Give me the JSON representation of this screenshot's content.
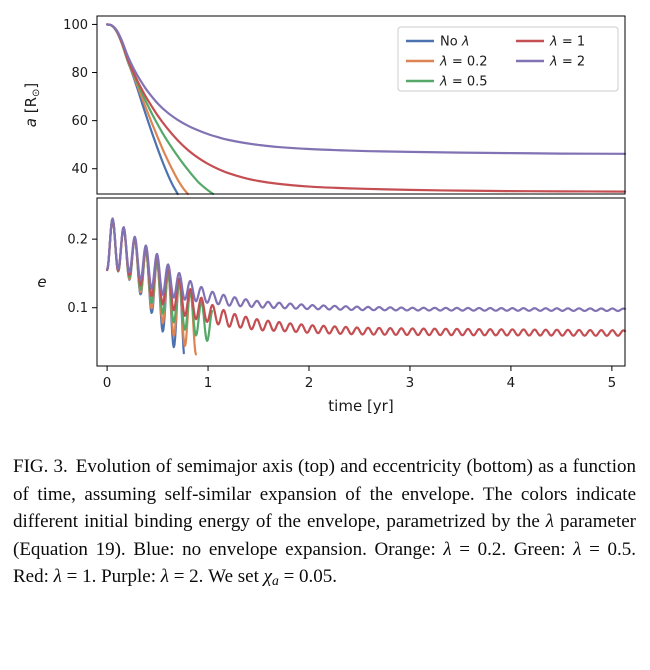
{
  "page": {
    "background": "#ffffff"
  },
  "caption": {
    "segments": [
      {
        "t": "FIG. 3.",
        "s": "figlabel"
      },
      {
        "t": "Evolution of semimajor axis (top) and eccentricity (bottom) as a function of time, assuming self-similar expansion of the envelope. The colors indicate different initial binding energy of the envelope, parametrized by the ",
        "s": "normal"
      },
      {
        "t": "λ",
        "s": "italic"
      },
      {
        "t": " parameter (Equation 19). Blue: no envelope expansion. Orange: ",
        "s": "normal"
      },
      {
        "t": "λ",
        "s": "italic"
      },
      {
        "t": " = 0.2. Green: ",
        "s": "normal"
      },
      {
        "t": "λ",
        "s": "italic"
      },
      {
        "t": " = 0.5. Red: ",
        "s": "normal"
      },
      {
        "t": "λ",
        "s": "italic"
      },
      {
        "t": " = 1. Purple: ",
        "s": "normal"
      },
      {
        "t": "λ",
        "s": "italic"
      },
      {
        "t": " = 2. We set ",
        "s": "normal"
      },
      {
        "t": "χ",
        "s": "italic"
      },
      {
        "t": "a",
        "s": "sub"
      },
      {
        "t": " = 0.05.",
        "s": "normal"
      }
    ]
  },
  "chart_data": [
    {
      "type": "line",
      "title": "",
      "ylabel": "a [R⊙]",
      "ylabel_parts": [
        {
          "t": "a",
          "italic": true
        },
        {
          "t": " [R"
        },
        {
          "t": "⊙",
          "sub": true
        },
        {
          "t": "]"
        }
      ],
      "ylim": [
        29.5,
        103.5
      ],
      "yticks": [
        40,
        60,
        80,
        100
      ],
      "xlim": [
        -0.1,
        5.13
      ],
      "grid": false,
      "legend": {
        "position": "upper right",
        "columns": [
          [
            "No λ",
            "λ = 0.2",
            "λ = 0.5"
          ],
          [
            "λ = 1",
            "λ = 2"
          ]
        ]
      },
      "series": [
        {
          "name": "No λ",
          "color": "#4C72B0",
          "points": [
            [
              0,
              100
            ],
            [
              0.05,
              99.4
            ],
            [
              0.1,
              96.6
            ],
            [
              0.15,
              91.6
            ],
            [
              0.2,
              85.2
            ],
            [
              0.25,
              79.6
            ],
            [
              0.3,
              73.4
            ],
            [
              0.35,
              66.8
            ],
            [
              0.4,
              60.4
            ],
            [
              0.45,
              54.3
            ],
            [
              0.5,
              48.4
            ],
            [
              0.55,
              42.8
            ],
            [
              0.6,
              37.7
            ],
            [
              0.65,
              33.2
            ],
            [
              0.7,
              29.5
            ]
          ]
        },
        {
          "name": "λ = 0.2",
          "color": "#DD8452",
          "points": [
            [
              0,
              100
            ],
            [
              0.05,
              99.4
            ],
            [
              0.1,
              96.7
            ],
            [
              0.15,
              91.7
            ],
            [
              0.2,
              85.4
            ],
            [
              0.25,
              80.0
            ],
            [
              0.3,
              74.6
            ],
            [
              0.35,
              69.0
            ],
            [
              0.4,
              63.6
            ],
            [
              0.45,
              58.3
            ],
            [
              0.5,
              53.2
            ],
            [
              0.55,
              48.2
            ],
            [
              0.6,
              43.6
            ],
            [
              0.65,
              39.3
            ],
            [
              0.7,
              35.4
            ],
            [
              0.75,
              32.1
            ],
            [
              0.8,
              29.5
            ]
          ]
        },
        {
          "name": "λ = 0.5",
          "color": "#55A868",
          "points": [
            [
              0,
              100
            ],
            [
              0.05,
              99.4
            ],
            [
              0.1,
              96.8
            ],
            [
              0.15,
              91.9
            ],
            [
              0.2,
              85.6
            ],
            [
              0.25,
              80.5
            ],
            [
              0.3,
              75.6
            ],
            [
              0.35,
              71.0
            ],
            [
              0.4,
              66.6
            ],
            [
              0.45,
              62.4
            ],
            [
              0.5,
              58.5
            ],
            [
              0.55,
              54.8
            ],
            [
              0.6,
              51.4
            ],
            [
              0.65,
              48.2
            ],
            [
              0.7,
              45.2
            ],
            [
              0.75,
              42.3
            ],
            [
              0.8,
              39.6
            ],
            [
              0.85,
              37.0
            ],
            [
              0.9,
              34.6
            ],
            [
              0.95,
              32.7
            ],
            [
              1.0,
              31.0
            ],
            [
              1.05,
              29.5
            ]
          ]
        },
        {
          "name": "λ = 1",
          "color": "#C44E52",
          "points": [
            [
              0,
              100
            ],
            [
              0.05,
              99.5
            ],
            [
              0.1,
              96.9
            ],
            [
              0.15,
              92.1
            ],
            [
              0.2,
              86.0
            ],
            [
              0.25,
              81.0
            ],
            [
              0.3,
              76.6
            ],
            [
              0.35,
              72.5
            ],
            [
              0.4,
              68.8
            ],
            [
              0.5,
              62.2
            ],
            [
              0.6,
              56.6
            ],
            [
              0.7,
              51.8
            ],
            [
              0.8,
              47.8
            ],
            [
              0.9,
              44.6
            ],
            [
              1.0,
              42.0
            ],
            [
              1.1,
              39.9
            ],
            [
              1.2,
              38.2
            ],
            [
              1.35,
              36.3
            ],
            [
              1.5,
              34.9
            ],
            [
              1.7,
              33.7
            ],
            [
              2.0,
              32.6
            ],
            [
              2.3,
              32.0
            ],
            [
              2.6,
              31.6
            ],
            [
              3.0,
              31.2
            ],
            [
              3.5,
              30.9
            ],
            [
              4.0,
              30.7
            ],
            [
              4.5,
              30.6
            ],
            [
              5.13,
              30.5
            ]
          ]
        },
        {
          "name": "λ = 2",
          "color": "#8172B3",
          "points": [
            [
              0,
              100
            ],
            [
              0.05,
              99.5
            ],
            [
              0.1,
              97.3
            ],
            [
              0.15,
              92.9
            ],
            [
              0.2,
              87.3
            ],
            [
              0.25,
              82.7
            ],
            [
              0.3,
              78.8
            ],
            [
              0.35,
              75.4
            ],
            [
              0.4,
              72.3
            ],
            [
              0.5,
              67.2
            ],
            [
              0.6,
              63.3
            ],
            [
              0.7,
              60.3
            ],
            [
              0.8,
              57.9
            ],
            [
              0.9,
              56.0
            ],
            [
              1.0,
              54.4
            ],
            [
              1.1,
              53.1
            ],
            [
              1.2,
              52.0
            ],
            [
              1.35,
              50.8
            ],
            [
              1.5,
              49.9
            ],
            [
              1.7,
              49.0
            ],
            [
              2.0,
              48.2
            ],
            [
              2.3,
              47.7
            ],
            [
              2.6,
              47.3
            ],
            [
              3.0,
              47.0
            ],
            [
              3.5,
              46.7
            ],
            [
              4.0,
              46.5
            ],
            [
              4.5,
              46.3
            ],
            [
              5.13,
              46.2
            ]
          ]
        }
      ]
    },
    {
      "type": "line",
      "title": "",
      "ylabel": "e",
      "ylabel_parts": [
        {
          "t": "e",
          "italic": true
        }
      ],
      "ylim": [
        0.015,
        0.26
      ],
      "yticks": [
        0.1,
        0.2
      ],
      "xlim": [
        -0.1,
        5.13
      ],
      "xticks": [
        0,
        1,
        2,
        3,
        4,
        5
      ],
      "xlabel": "time [yr]",
      "grid": false,
      "series": [
        {
          "name": "No λ",
          "color": "#4C72B0",
          "oscillation": {
            "period": 0.11,
            "phase_deg": 180,
            "tmax": 0.76,
            "trend": [
              [
                0,
                0.195
              ],
              [
                0.15,
                0.185
              ],
              [
                0.3,
                0.162
              ],
              [
                0.45,
                0.132
              ],
              [
                0.6,
                0.103
              ],
              [
                0.76,
                0.08
              ]
            ],
            "amplitude": [
              [
                0,
                0.04
              ],
              [
                0.15,
                0.032
              ],
              [
                0.3,
                0.035
              ],
              [
                0.45,
                0.042
              ],
              [
                0.6,
                0.05
              ],
              [
                0.76,
                0.055
              ]
            ]
          }
        },
        {
          "name": "λ = 0.2",
          "color": "#DD8452",
          "oscillation": {
            "period": 0.11,
            "phase_deg": 180,
            "tmax": 0.88,
            "trend": [
              [
                0,
                0.195
              ],
              [
                0.15,
                0.185
              ],
              [
                0.3,
                0.163
              ],
              [
                0.45,
                0.135
              ],
              [
                0.6,
                0.11
              ],
              [
                0.75,
                0.09
              ],
              [
                0.88,
                0.077
              ]
            ],
            "amplitude": [
              [
                0,
                0.04
              ],
              [
                0.15,
                0.032
              ],
              [
                0.3,
                0.034
              ],
              [
                0.45,
                0.038
              ],
              [
                0.6,
                0.042
              ],
              [
                0.88,
                0.045
              ]
            ]
          }
        },
        {
          "name": "λ = 0.5",
          "color": "#55A868",
          "oscillation": {
            "period": 0.11,
            "phase_deg": 180,
            "tmax": 1.04,
            "trend": [
              [
                0,
                0.195
              ],
              [
                0.15,
                0.186
              ],
              [
                0.3,
                0.165
              ],
              [
                0.45,
                0.14
              ],
              [
                0.6,
                0.118
              ],
              [
                0.8,
                0.095
              ],
              [
                1.04,
                0.072
              ]
            ],
            "amplitude": [
              [
                0,
                0.04
              ],
              [
                0.2,
                0.032
              ],
              [
                0.45,
                0.035
              ],
              [
                0.7,
                0.032
              ],
              [
                1.04,
                0.024
              ]
            ]
          }
        },
        {
          "name": "λ = 1",
          "color": "#C44E52",
          "oscillation": {
            "period": 0.11,
            "phase_deg": 180,
            "tmax": 5.13,
            "trend": [
              [
                0,
                0.195
              ],
              [
                0.15,
                0.186
              ],
              [
                0.3,
                0.168
              ],
              [
                0.45,
                0.148
              ],
              [
                0.6,
                0.13
              ],
              [
                0.8,
                0.108
              ],
              [
                1.0,
                0.093
              ],
              [
                1.2,
                0.083
              ],
              [
                1.5,
                0.075
              ],
              [
                2.0,
                0.069
              ],
              [
                2.5,
                0.066
              ],
              [
                3.0,
                0.065
              ],
              [
                4.0,
                0.064
              ],
              [
                5.13,
                0.063
              ]
            ],
            "amplitude": [
              [
                0,
                0.04
              ],
              [
                0.2,
                0.03
              ],
              [
                0.5,
                0.033
              ],
              [
                0.8,
                0.022
              ],
              [
                1.0,
                0.014
              ],
              [
                1.3,
                0.009
              ],
              [
                1.8,
                0.006
              ],
              [
                2.5,
                0.005
              ],
              [
                5.13,
                0.004
              ]
            ]
          }
        },
        {
          "name": "λ = 2",
          "color": "#8172B3",
          "oscillation": {
            "period": 0.11,
            "phase_deg": 180,
            "tmax": 5.13,
            "trend": [
              [
                0,
                0.196
              ],
              [
                0.15,
                0.188
              ],
              [
                0.3,
                0.172
              ],
              [
                0.45,
                0.155
              ],
              [
                0.6,
                0.14
              ],
              [
                0.8,
                0.126
              ],
              [
                1.0,
                0.116
              ],
              [
                1.2,
                0.11
              ],
              [
                1.5,
                0.105
              ],
              [
                2.0,
                0.101
              ],
              [
                2.5,
                0.099
              ],
              [
                3.0,
                0.098
              ],
              [
                4.0,
                0.0975
              ],
              [
                5.13,
                0.097
              ]
            ],
            "amplitude": [
              [
                0,
                0.04
              ],
              [
                0.2,
                0.029
              ],
              [
                0.5,
                0.028
              ],
              [
                0.8,
                0.015
              ],
              [
                1.0,
                0.009
              ],
              [
                1.4,
                0.005
              ],
              [
                2.0,
                0.003
              ],
              [
                3.0,
                0.002
              ],
              [
                5.13,
                0.0018
              ]
            ]
          }
        }
      ]
    }
  ]
}
